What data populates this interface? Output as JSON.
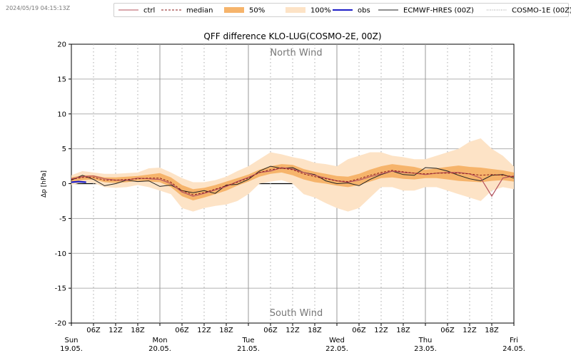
{
  "header": {
    "timestamp": "2024/05/19 04:15:13Z"
  },
  "legend": {
    "items": [
      {
        "key": "ctrl",
        "label": "ctrl",
        "style": "line",
        "color": "#b5535e"
      },
      {
        "key": "median",
        "label": "median",
        "style": "dashed",
        "color": "#8b1a1a"
      },
      {
        "key": "p50",
        "label": "50%",
        "style": "patch",
        "color": "#f6b46b"
      },
      {
        "key": "p100",
        "label": "100%",
        "style": "patch",
        "color": "#fde3c6"
      },
      {
        "key": "obs",
        "label": "obs",
        "style": "line-thick",
        "color": "#1f1fc8"
      },
      {
        "key": "ecmwf",
        "label": "ECMWF-HRES (00Z)",
        "style": "line",
        "color": "#222222"
      },
      {
        "key": "cosmo1e",
        "label": "COSMO-1E (00Z)",
        "style": "dotted",
        "color": "#999999"
      }
    ]
  },
  "chart_data": {
    "type": "line",
    "title": "QFF difference KLO-LUG(COSMO-2E, 00Z)",
    "ylabel": "Δp [hPa]",
    "ylim": [
      -20,
      20
    ],
    "yticks": [
      -20,
      -15,
      -10,
      -5,
      0,
      5,
      10,
      15,
      20
    ],
    "xlim_hours": [
      0,
      120
    ],
    "annotations": {
      "top": "North Wind",
      "bottom": "South Wind"
    },
    "day_ticks": [
      {
        "h": 0,
        "day": "Sun",
        "date": "19.05."
      },
      {
        "h": 24,
        "day": "Mon",
        "date": "20.05."
      },
      {
        "h": 48,
        "day": "Tue",
        "date": "21.05."
      },
      {
        "h": 72,
        "day": "Wed",
        "date": "22.05."
      },
      {
        "h": 96,
        "day": "Thu",
        "date": "23.05."
      },
      {
        "h": 120,
        "day": "Fri",
        "date": "24.05."
      }
    ],
    "hour_labels": [
      "06Z",
      "12Z",
      "18Z"
    ],
    "x": [
      0,
      3,
      6,
      9,
      12,
      15,
      18,
      21,
      24,
      27,
      30,
      33,
      36,
      39,
      42,
      45,
      48,
      51,
      54,
      57,
      60,
      63,
      66,
      69,
      72,
      75,
      78,
      81,
      84,
      87,
      90,
      93,
      96,
      99,
      102,
      105,
      108,
      111,
      114,
      117,
      120
    ],
    "p100_low": [
      -0.2,
      0.2,
      0.1,
      -0.5,
      -0.6,
      -0.5,
      -0.2,
      -0.5,
      -1.0,
      -1.5,
      -3.5,
      -4.0,
      -3.5,
      -3.2,
      -3.0,
      -2.5,
      -1.5,
      0,
      0.3,
      0.5,
      0,
      -1.5,
      -2.0,
      -2.8,
      -3.5,
      -4.0,
      -3.5,
      -2.0,
      -0.5,
      -0.5,
      -1.0,
      -1.0,
      -0.5,
      -0.5,
      -1.0,
      -1.5,
      -2.0,
      -2.5,
      -1.0,
      -0.5,
      -0.8
    ],
    "p50_low": [
      0.3,
      0.5,
      0.6,
      0.2,
      0.1,
      0.2,
      0.4,
      0.3,
      0.2,
      -0.5,
      -1.8,
      -2.4,
      -2.0,
      -1.5,
      -1.0,
      -0.3,
      0.3,
      1.0,
      1.4,
      1.6,
      1.2,
      0.6,
      0.2,
      0,
      -0.3,
      -0.5,
      -0.2,
      0.3,
      0.8,
      0.9,
      0.7,
      0.6,
      0.8,
      0.8,
      0.6,
      0.4,
      0.3,
      0.2,
      0.4,
      0.5,
      0.3
    ],
    "p50_high": [
      0.9,
      1.2,
      1.2,
      0.9,
      0.9,
      1.0,
      1.1,
      1.3,
      1.5,
      0.9,
      -0.2,
      -0.8,
      -0.6,
      -0.2,
      0.3,
      0.8,
      1.3,
      2.0,
      2.5,
      2.8,
      2.7,
      2.1,
      1.7,
      1.4,
      1.1,
      1.0,
      1.4,
      2.0,
      2.5,
      2.8,
      2.6,
      2.4,
      2.0,
      2.2,
      2.4,
      2.6,
      2.4,
      2.3,
      2.1,
      1.9,
      1.6
    ],
    "p100_high": [
      1.2,
      1.8,
      1.6,
      1.4,
      1.4,
      1.5,
      1.6,
      2.2,
      2.3,
      1.6,
      0.8,
      0.2,
      0.2,
      0.5,
      1.0,
      1.8,
      2.5,
      3.5,
      4.5,
      4.2,
      3.8,
      3.5,
      3.0,
      2.8,
      2.5,
      3.5,
      4.0,
      4.5,
      4.5,
      4.0,
      3.8,
      3.5,
      3.5,
      4.0,
      4.5,
      5.0,
      6.0,
      6.5,
      5.0,
      4.0,
      2.5
    ],
    "median": [
      0.6,
      0.9,
      0.9,
      0.5,
      0.5,
      0.6,
      0.7,
      0.8,
      0.8,
      0.2,
      -1.0,
      -1.6,
      -1.3,
      -0.8,
      -0.3,
      0.2,
      0.8,
      1.6,
      2.0,
      2.2,
      2.0,
      1.4,
      1.0,
      0.7,
      0.4,
      0.3,
      0.7,
      1.2,
      1.6,
      1.9,
      1.7,
      1.5,
      1.4,
      1.5,
      1.5,
      1.5,
      1.4,
      1.2,
      1.3,
      1.2,
      1.0
    ],
    "ctrl": [
      0.7,
      1.0,
      1.1,
      0.7,
      0.5,
      0.5,
      0.8,
      0.7,
      0.6,
      0.0,
      -1.2,
      -1.8,
      -1.4,
      -0.9,
      -0.4,
      0.3,
      0.9,
      1.6,
      1.8,
      2.3,
      2.1,
      1.6,
      1.2,
      0.8,
      0.4,
      0.2,
      0.5,
      1.0,
      1.4,
      1.8,
      1.6,
      1.5,
      1.3,
      1.5,
      1.6,
      1.6,
      1.4,
      0.8,
      -1.8,
      0.8,
      1.1
    ],
    "ecmwf": [
      0.5,
      1.2,
      0.6,
      -0.3,
      0.0,
      0.5,
      0.3,
      0.4,
      -0.4,
      -0.2,
      -1.0,
      -1.3,
      -1.0,
      -1.4,
      -0.2,
      -0.1,
      0.6,
      1.8,
      2.5,
      2.2,
      2.3,
      1.6,
      1.3,
      0.4,
      0.0,
      0.1,
      -0.3,
      0.6,
      1.3,
      1.8,
      1.3,
      1.2,
      2.3,
      2.2,
      1.8,
      1.2,
      0.7,
      0.4,
      1.2,
      1.3,
      0.8
    ],
    "obs": {
      "x": [
        0,
        2,
        4
      ],
      "y": [
        0.2,
        0.3,
        0.2
      ]
    }
  }
}
